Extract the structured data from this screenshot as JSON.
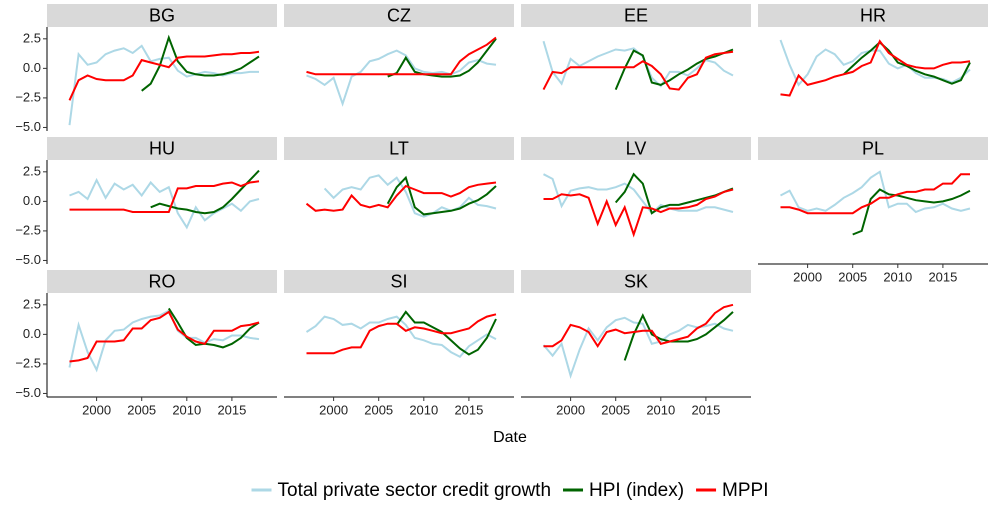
{
  "chart_data": {
    "type": "line",
    "x_label": "Date",
    "x": [
      1997,
      1998,
      1999,
      2000,
      2001,
      2002,
      2003,
      2004,
      2005,
      2006,
      2007,
      2008,
      2009,
      2010,
      2011,
      2012,
      2013,
      2014,
      2015,
      2016,
      2017,
      2018
    ],
    "xlim": [
      1994.5,
      2020
    ],
    "ylim": [
      -5.3,
      3.5
    ],
    "xticks": [
      2000,
      2005,
      2010,
      2015
    ],
    "yticks": [
      {
        "value": -5,
        "label": "−5.0"
      },
      {
        "value": -2.5,
        "label": "−2.5"
      },
      {
        "value": 0,
        "label": "0.0"
      },
      2.5
    ],
    "legend": [
      {
        "name": "Total private sector credit growth",
        "color": "#add8e6"
      },
      {
        "name": "HPI (index)",
        "color": "#006400"
      },
      {
        "name": "MPPI",
        "color": "#ff0000"
      }
    ],
    "facets": [
      {
        "title": "BG",
        "series": [
          {
            "values": [
              -4.8,
              1.2,
              0.3,
              0.5,
              1.2,
              1.5,
              1.7,
              1.3,
              1.9,
              0.6,
              0.8,
              0.9,
              -0.2,
              -0.7,
              -0.5,
              -0.3,
              -0.4,
              -0.6,
              -0.4,
              -0.4,
              -0.3,
              -0.3
            ]
          },
          {
            "values": [
              null,
              null,
              null,
              null,
              null,
              null,
              null,
              null,
              -1.9,
              -1.3,
              0.2,
              2.6,
              0.6,
              -0.3,
              -0.5,
              -0.6,
              -0.6,
              -0.5,
              -0.3,
              0.0,
              0.5,
              1.0
            ]
          },
          {
            "values": [
              -2.7,
              -1.0,
              -0.6,
              -0.9,
              -1.0,
              -1.0,
              -1.0,
              -0.6,
              0.7,
              0.5,
              0.3,
              0.1,
              0.9,
              1.0,
              1.0,
              1.0,
              1.1,
              1.2,
              1.2,
              1.3,
              1.3,
              1.4
            ]
          }
        ]
      },
      {
        "title": "CZ",
        "series": [
          {
            "values": [
              -0.6,
              -0.9,
              -1.4,
              -0.8,
              -3.0,
              -0.7,
              -0.3,
              0.6,
              0.8,
              1.2,
              1.5,
              1.1,
              0.0,
              -0.3,
              -0.4,
              -0.3,
              -0.5,
              -0.2,
              0.5,
              0.7,
              0.4,
              0.3
            ]
          },
          {
            "values": [
              null,
              null,
              null,
              null,
              null,
              null,
              null,
              null,
              null,
              -0.7,
              -0.4,
              0.9,
              -0.3,
              -0.5,
              -0.6,
              -0.7,
              -0.7,
              -0.6,
              -0.2,
              0.5,
              1.5,
              2.5
            ]
          },
          {
            "values": [
              -0.3,
              -0.5,
              -0.5,
              -0.5,
              -0.5,
              -0.5,
              -0.5,
              -0.5,
              -0.5,
              -0.5,
              -0.5,
              -0.5,
              -0.5,
              -0.5,
              -0.5,
              -0.5,
              -0.5,
              0.6,
              1.2,
              1.6,
              2.0,
              2.6
            ]
          }
        ]
      },
      {
        "title": "EE",
        "series": [
          {
            "values": [
              2.3,
              -0.3,
              -1.3,
              0.8,
              0.2,
              0.6,
              1.0,
              1.3,
              1.6,
              1.5,
              1.7,
              1.0,
              -0.8,
              -1.5,
              -0.3,
              -0.3,
              -0.6,
              0.0,
              0.7,
              0.5,
              -0.2,
              -0.6
            ]
          },
          {
            "values": [
              null,
              null,
              null,
              null,
              null,
              null,
              null,
              null,
              -1.8,
              0.0,
              1.5,
              1.1,
              -1.2,
              -1.4,
              -1.0,
              -0.5,
              -0.1,
              0.4,
              0.8,
              1.0,
              1.3,
              1.6
            ]
          },
          {
            "values": [
              -1.8,
              -0.3,
              -0.4,
              0.1,
              0.1,
              0.1,
              0.1,
              0.1,
              0.1,
              0.1,
              0.1,
              0.6,
              0.2,
              -0.5,
              -1.7,
              -1.8,
              -0.8,
              -0.5,
              0.9,
              1.2,
              1.3,
              1.4
            ]
          }
        ]
      },
      {
        "title": "HR",
        "series": [
          {
            "values": [
              2.4,
              0.3,
              -1.4,
              -0.5,
              1.0,
              1.6,
              1.2,
              0.3,
              0.6,
              1.3,
              1.5,
              1.5,
              0.4,
              0.0,
              0.3,
              -0.4,
              -0.8,
              -0.8,
              -0.9,
              -1.2,
              -0.8,
              -0.1
            ]
          },
          {
            "values": [
              null,
              null,
              null,
              null,
              null,
              null,
              null,
              -0.5,
              0.2,
              0.9,
              1.5,
              2.2,
              1.5,
              0.5,
              0.2,
              -0.2,
              -0.5,
              -0.7,
              -1.0,
              -1.3,
              -1.0,
              0.5
            ]
          },
          {
            "values": [
              -2.2,
              -2.3,
              -0.6,
              -1.4,
              -1.2,
              -1.0,
              -0.7,
              -0.5,
              -0.3,
              0.2,
              0.5,
              2.3,
              1.3,
              0.8,
              0.3,
              0.1,
              0.0,
              0.0,
              0.3,
              0.5,
              0.5,
              0.6
            ]
          }
        ]
      },
      {
        "title": "HU",
        "series": [
          {
            "values": [
              0.5,
              0.8,
              0.2,
              1.8,
              0.3,
              1.5,
              1.0,
              1.4,
              0.5,
              1.6,
              0.8,
              1.2,
              -1.0,
              -2.2,
              -0.5,
              -1.6,
              -1.0,
              -0.6,
              -0.2,
              -0.8,
              0.0,
              0.2
            ]
          },
          {
            "values": [
              null,
              null,
              null,
              null,
              null,
              null,
              null,
              null,
              null,
              -0.5,
              -0.2,
              -0.4,
              -0.6,
              -0.7,
              -0.9,
              -1.0,
              -0.9,
              -0.5,
              0.2,
              1.0,
              1.8,
              2.6
            ]
          },
          {
            "values": [
              -0.7,
              -0.7,
              -0.7,
              -0.7,
              -0.7,
              -0.7,
              -0.7,
              -0.9,
              -0.9,
              -0.9,
              -0.9,
              -0.9,
              1.1,
              1.1,
              1.3,
              1.3,
              1.3,
              1.5,
              1.6,
              1.3,
              1.6,
              1.7
            ]
          }
        ]
      },
      {
        "title": "LT",
        "series": [
          {
            "values": [
              null,
              null,
              1.1,
              0.3,
              1.0,
              1.2,
              1.0,
              2.0,
              2.2,
              1.4,
              2.0,
              0.8,
              -1.0,
              -1.3,
              -1.0,
              -0.5,
              -0.8,
              -0.5,
              0.3,
              -0.3,
              -0.4,
              -0.6
            ]
          },
          {
            "values": [
              null,
              null,
              null,
              null,
              null,
              null,
              null,
              null,
              null,
              -0.2,
              1.2,
              2.0,
              -0.5,
              -1.1,
              -1.0,
              -0.9,
              -0.8,
              -0.6,
              -0.2,
              0.1,
              0.6,
              1.3
            ]
          },
          {
            "values": [
              -0.2,
              -0.8,
              -0.7,
              -0.8,
              -0.7,
              0.5,
              -0.3,
              -0.5,
              -0.3,
              -0.5,
              0.5,
              1.3,
              1.0,
              0.7,
              0.7,
              0.7,
              0.4,
              0.7,
              1.2,
              1.4,
              1.5,
              1.6
            ]
          }
        ]
      },
      {
        "title": "LV",
        "series": [
          {
            "values": [
              2.3,
              1.9,
              -0.4,
              0.9,
              1.1,
              1.2,
              1.0,
              1.0,
              1.2,
              1.5,
              1.0,
              0.0,
              -1.0,
              -0.3,
              -0.6,
              -0.8,
              -0.8,
              -0.8,
              -0.5,
              -0.5,
              -0.7,
              -0.9
            ]
          },
          {
            "values": [
              null,
              null,
              null,
              null,
              null,
              null,
              null,
              null,
              -0.1,
              0.8,
              2.3,
              1.5,
              -1.0,
              -0.5,
              -0.3,
              -0.3,
              -0.1,
              0.1,
              0.3,
              0.5,
              0.8,
              1.1
            ]
          },
          {
            "values": [
              0.2,
              0.2,
              0.6,
              0.5,
              0.6,
              0.3,
              -1.9,
              0.0,
              -2.0,
              -0.5,
              -2.8,
              -0.5,
              -0.6,
              -0.9,
              -0.6,
              -0.6,
              -0.5,
              -0.3,
              0.2,
              0.4,
              0.8,
              1.0
            ]
          }
        ]
      },
      {
        "title": "PL",
        "series": [
          {
            "values": [
              0.5,
              0.9,
              -0.5,
              -0.8,
              -0.6,
              -0.8,
              -0.3,
              0.3,
              0.7,
              1.2,
              2.0,
              2.5,
              -0.5,
              -0.2,
              -0.2,
              -0.9,
              -0.6,
              -0.5,
              -0.2,
              -0.6,
              -0.8,
              -0.6
            ]
          },
          {
            "values": [
              null,
              null,
              null,
              null,
              null,
              null,
              null,
              null,
              -2.8,
              -2.5,
              0.2,
              1.0,
              0.6,
              0.5,
              0.3,
              0.1,
              0.0,
              -0.1,
              0.0,
              0.2,
              0.5,
              0.9
            ]
          },
          {
            "values": [
              -0.5,
              -0.5,
              -0.7,
              -1.0,
              -1.0,
              -1.0,
              -1.0,
              -1.0,
              -1.0,
              -0.5,
              -0.2,
              0.3,
              0.3,
              0.6,
              0.8,
              0.8,
              1.0,
              1.0,
              1.5,
              1.5,
              2.3,
              2.3
            ]
          }
        ]
      },
      {
        "title": "RO",
        "series": [
          {
            "values": [
              -2.8,
              0.8,
              -1.5,
              -3.0,
              -0.5,
              0.3,
              0.4,
              1.0,
              1.3,
              1.5,
              1.6,
              2.0,
              0.3,
              -0.3,
              -0.3,
              -0.7,
              -0.4,
              -0.5,
              -0.1,
              -0.1,
              -0.3,
              -0.4
            ]
          },
          {
            "values": [
              null,
              null,
              null,
              null,
              null,
              null,
              null,
              null,
              null,
              null,
              null,
              2.2,
              1.0,
              -0.3,
              -0.9,
              -0.8,
              -0.9,
              -1.1,
              -0.8,
              -0.3,
              0.5,
              1.0
            ]
          },
          {
            "values": [
              -2.3,
              -2.2,
              -2.0,
              -0.6,
              -0.6,
              -0.6,
              -0.5,
              0.5,
              0.5,
              1.2,
              1.4,
              1.9,
              0.4,
              -0.2,
              -0.6,
              -0.8,
              0.3,
              0.3,
              0.3,
              0.7,
              0.8,
              1.0
            ]
          }
        ]
      },
      {
        "title": "SI",
        "series": [
          {
            "values": [
              0.2,
              0.7,
              1.5,
              1.3,
              0.8,
              0.9,
              0.5,
              1.0,
              1.0,
              1.3,
              1.5,
              0.8,
              -0.3,
              -0.5,
              -0.8,
              -0.9,
              -1.5,
              -1.9,
              -1.0,
              -0.5,
              0.0,
              -0.4
            ]
          },
          {
            "values": [
              null,
              null,
              null,
              null,
              null,
              null,
              null,
              null,
              null,
              null,
              0.8,
              1.9,
              1.0,
              1.0,
              0.6,
              0.2,
              -0.5,
              -1.2,
              -1.7,
              -1.3,
              -0.3,
              1.3
            ]
          },
          {
            "values": [
              -1.6,
              -1.6,
              -1.6,
              -1.6,
              -1.3,
              -1.1,
              -1.1,
              0.3,
              0.7,
              0.9,
              0.9,
              0.3,
              0.6,
              0.5,
              0.3,
              0.1,
              0.1,
              0.3,
              0.5,
              1.1,
              1.5,
              1.7
            ]
          }
        ]
      },
      {
        "title": "SK",
        "series": [
          {
            "values": [
              -0.9,
              -1.8,
              -0.8,
              -3.5,
              -1.3,
              0.5,
              -0.5,
              0.6,
              1.2,
              1.4,
              1.0,
              0.9,
              -0.8,
              -0.6,
              0.0,
              0.3,
              0.8,
              0.6,
              0.7,
              0.9,
              0.5,
              0.3
            ]
          },
          {
            "values": [
              null,
              null,
              null,
              null,
              null,
              null,
              null,
              null,
              null,
              -2.2,
              0.0,
              1.6,
              0.0,
              -0.4,
              -0.6,
              -0.6,
              -0.6,
              -0.4,
              0.0,
              0.6,
              1.2,
              1.9
            ]
          },
          {
            "values": [
              -1.0,
              -1.0,
              -0.5,
              0.8,
              0.6,
              0.2,
              -1.0,
              0.2,
              0.4,
              0.1,
              0.2,
              0.3,
              0.3,
              -0.8,
              -0.6,
              -0.4,
              -0.2,
              0.5,
              0.9,
              1.8,
              2.3,
              2.5
            ]
          }
        ]
      }
    ]
  }
}
